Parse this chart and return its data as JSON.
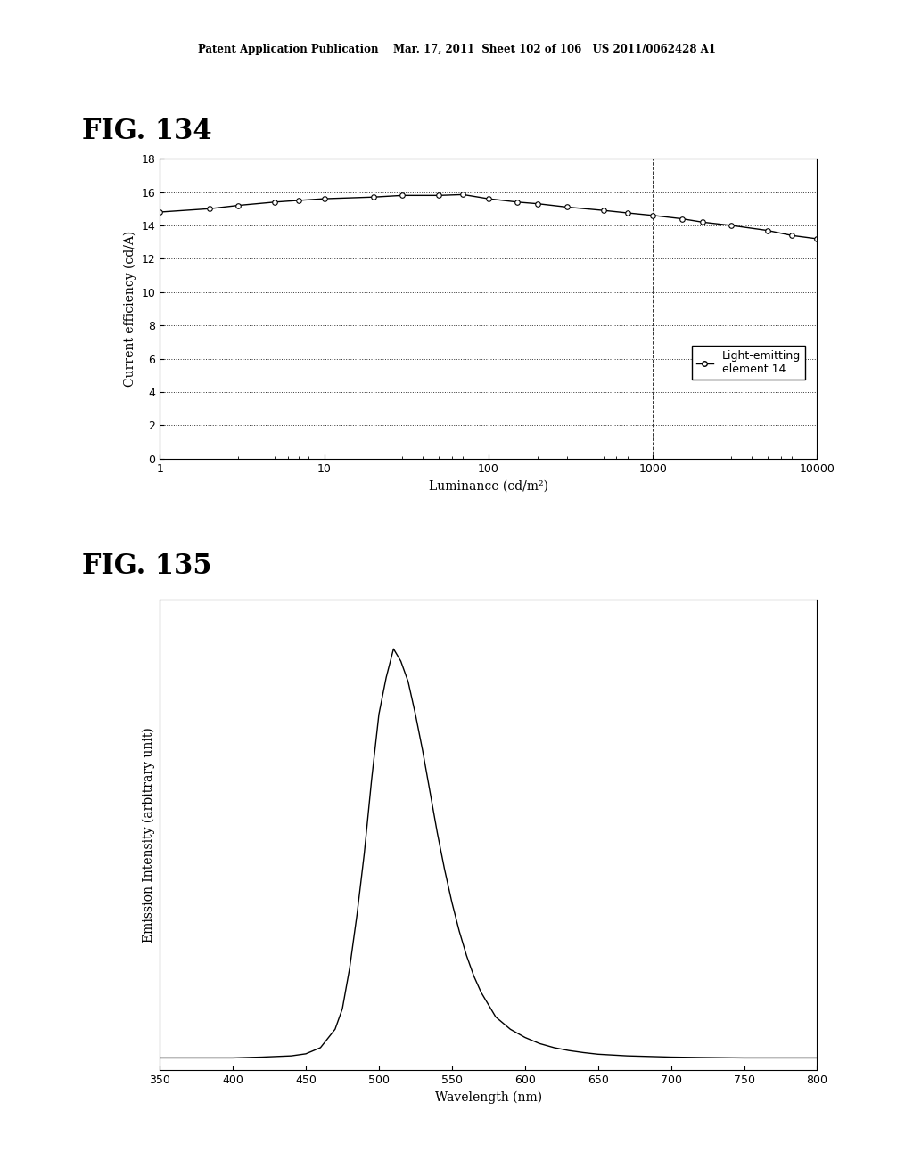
{
  "fig134": {
    "title": "FIG. 134",
    "xlabel": "Luminance (cd/m²)",
    "ylabel": "Current efficiency (cd/A)",
    "ylim": [
      0,
      18
    ],
    "yticks": [
      0,
      2,
      4,
      6,
      8,
      10,
      12,
      14,
      16,
      18
    ],
    "legend_label": "Light-emitting\nelement 14",
    "x_data": [
      1,
      2,
      3,
      5,
      7,
      10,
      20,
      30,
      50,
      70,
      100,
      150,
      200,
      300,
      500,
      700,
      1000,
      1500,
      2000,
      3000,
      5000,
      7000,
      10000
    ],
    "y_data": [
      14.8,
      15.0,
      15.2,
      15.4,
      15.5,
      15.6,
      15.7,
      15.8,
      15.8,
      15.85,
      15.6,
      15.4,
      15.3,
      15.1,
      14.9,
      14.75,
      14.6,
      14.4,
      14.2,
      14.0,
      13.7,
      13.4,
      13.2
    ]
  },
  "fig135": {
    "title": "FIG. 135",
    "xlabel": "Wavelength (nm)",
    "ylabel": "Emission Intensity (arbitrary unit)",
    "xlim": [
      350,
      800
    ],
    "xticks": [
      350,
      400,
      450,
      500,
      550,
      600,
      650,
      700,
      750,
      800
    ],
    "wl_data": [
      350,
      380,
      400,
      420,
      440,
      450,
      460,
      470,
      475,
      480,
      485,
      490,
      495,
      500,
      505,
      510,
      515,
      520,
      525,
      530,
      535,
      540,
      545,
      550,
      555,
      560,
      565,
      570,
      575,
      580,
      590,
      600,
      610,
      620,
      630,
      640,
      650,
      660,
      670,
      680,
      700,
      720,
      750,
      800
    ],
    "intensity_data": [
      0.0,
      0.0,
      0.0,
      0.002,
      0.005,
      0.01,
      0.025,
      0.07,
      0.12,
      0.22,
      0.35,
      0.5,
      0.68,
      0.84,
      0.93,
      1.0,
      0.97,
      0.92,
      0.84,
      0.75,
      0.65,
      0.55,
      0.46,
      0.38,
      0.31,
      0.25,
      0.2,
      0.16,
      0.13,
      0.1,
      0.07,
      0.05,
      0.035,
      0.025,
      0.018,
      0.013,
      0.009,
      0.007,
      0.005,
      0.004,
      0.002,
      0.001,
      0.0,
      0.0
    ]
  },
  "header_text": "Patent Application Publication    Mar. 17, 2011  Sheet 102 of 106   US 2011/0062428 A1",
  "bg_color": "#ffffff",
  "line_color": "#000000",
  "grid_color": "#000000",
  "marker": "o",
  "marker_size": 4
}
